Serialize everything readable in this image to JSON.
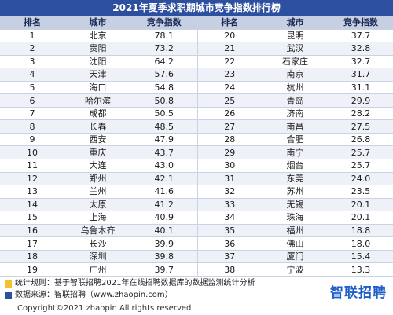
{
  "title": "2021年夏季求职期城市竞争指数排行榜",
  "headers": [
    "排名",
    "城市",
    "竞争指数",
    "排名",
    "城市",
    "竞争指数"
  ],
  "colors": {
    "title_bg": "#2c4fa0",
    "header_bg": "#c7d0e3",
    "note1_marker": "#f2c230",
    "note2_marker": "#2c4fa0",
    "logo": "#1f5fc9"
  },
  "rows": [
    {
      "l_rank": "1",
      "l_city": "北京",
      "l_val": "78.1",
      "r_rank": "20",
      "r_city": "昆明",
      "r_val": "37.7"
    },
    {
      "l_rank": "2",
      "l_city": "贵阳",
      "l_val": "73.2",
      "r_rank": "21",
      "r_city": "武汉",
      "r_val": "32.8"
    },
    {
      "l_rank": "3",
      "l_city": "沈阳",
      "l_val": "64.2",
      "r_rank": "22",
      "r_city": "石家庄",
      "r_val": "32.7"
    },
    {
      "l_rank": "4",
      "l_city": "天津",
      "l_val": "57.6",
      "r_rank": "23",
      "r_city": "南京",
      "r_val": "31.7"
    },
    {
      "l_rank": "5",
      "l_city": "海口",
      "l_val": "54.8",
      "r_rank": "24",
      "r_city": "杭州",
      "r_val": "31.1"
    },
    {
      "l_rank": "6",
      "l_city": "哈尔滨",
      "l_val": "50.8",
      "r_rank": "25",
      "r_city": "青岛",
      "r_val": "29.9"
    },
    {
      "l_rank": "7",
      "l_city": "成都",
      "l_val": "50.5",
      "r_rank": "26",
      "r_city": "济南",
      "r_val": "28.2"
    },
    {
      "l_rank": "8",
      "l_city": "长春",
      "l_val": "48.5",
      "r_rank": "27",
      "r_city": "南昌",
      "r_val": "27.5"
    },
    {
      "l_rank": "9",
      "l_city": "西安",
      "l_val": "47.9",
      "r_rank": "28",
      "r_city": "合肥",
      "r_val": "26.8"
    },
    {
      "l_rank": "10",
      "l_city": "重庆",
      "l_val": "43.7",
      "r_rank": "29",
      "r_city": "南宁",
      "r_val": "25.7"
    },
    {
      "l_rank": "11",
      "l_city": "大连",
      "l_val": "43.0",
      "r_rank": "30",
      "r_city": "烟台",
      "r_val": "25.7"
    },
    {
      "l_rank": "12",
      "l_city": "郑州",
      "l_val": "42.1",
      "r_rank": "31",
      "r_city": "东莞",
      "r_val": "24.0"
    },
    {
      "l_rank": "13",
      "l_city": "兰州",
      "l_val": "41.6",
      "r_rank": "32",
      "r_city": "苏州",
      "r_val": "23.5"
    },
    {
      "l_rank": "14",
      "l_city": "太原",
      "l_val": "41.2",
      "r_rank": "33",
      "r_city": "无锡",
      "r_val": "20.1"
    },
    {
      "l_rank": "15",
      "l_city": "上海",
      "l_val": "40.9",
      "r_rank": "34",
      "r_city": "珠海",
      "r_val": "20.1"
    },
    {
      "l_rank": "16",
      "l_city": "乌鲁木齐",
      "l_val": "40.1",
      "r_rank": "35",
      "r_city": "福州",
      "r_val": "18.8"
    },
    {
      "l_rank": "17",
      "l_city": "长沙",
      "l_val": "39.9",
      "r_rank": "36",
      "r_city": "佛山",
      "r_val": "18.0"
    },
    {
      "l_rank": "18",
      "l_city": "深圳",
      "l_val": "39.8",
      "r_rank": "37",
      "r_city": "厦门",
      "r_val": "15.4"
    },
    {
      "l_rank": "19",
      "l_city": "广州",
      "l_val": "39.7",
      "r_rank": "38",
      "r_city": "宁波",
      "r_val": "13.3"
    }
  ],
  "footer": {
    "note1": "统计规则：基于智联招聘2021年在线招聘数据库的数据监测统计分析",
    "note2": "数据来源：智联招聘（www.zhaopin.com）",
    "copyright": "Copyright©2021 zhaopin All rights reserved",
    "logo_text": "智联招聘"
  }
}
